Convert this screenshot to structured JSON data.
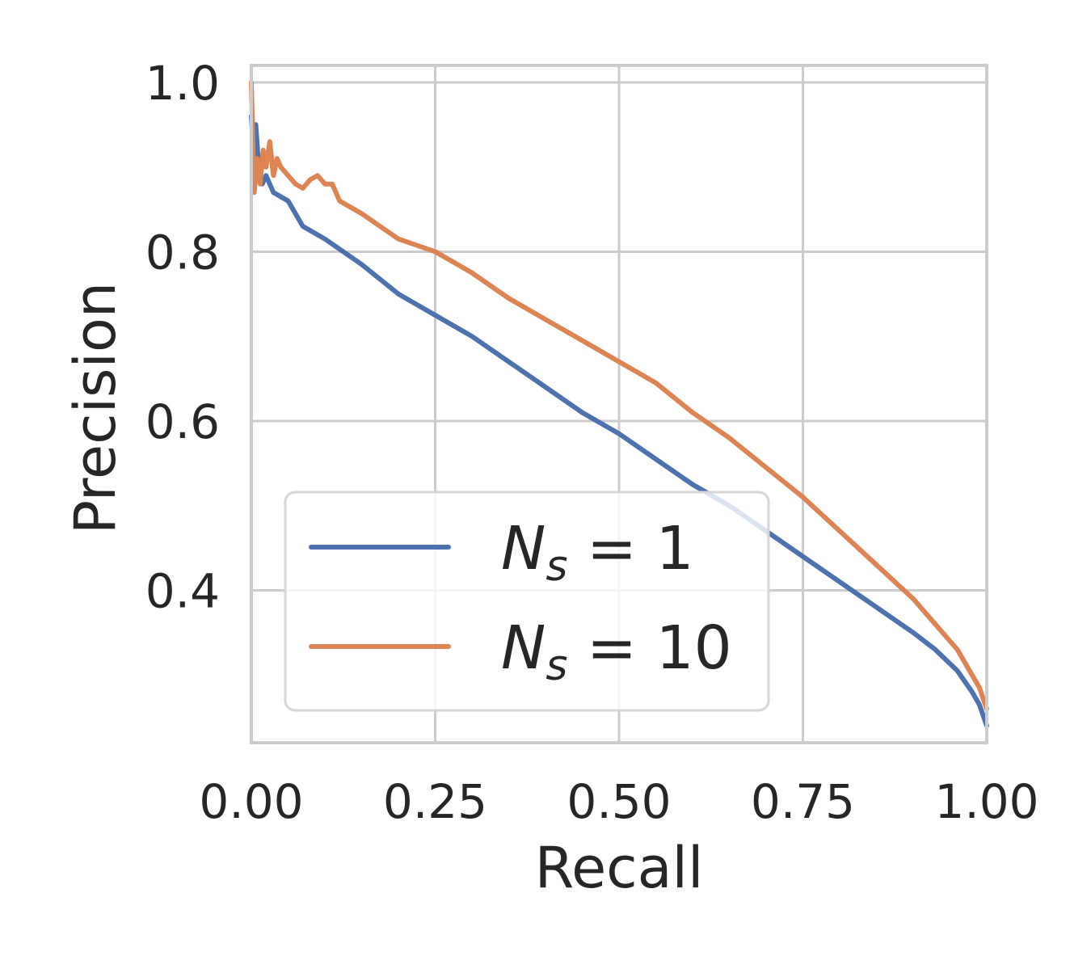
{
  "chart_data": {
    "type": "line",
    "title": "",
    "xlabel": "Recall",
    "ylabel": "Precision",
    "xlim": [
      0.0,
      1.0
    ],
    "ylim": [
      0.22,
      1.02
    ],
    "grid": true,
    "legend_position": "lower-left",
    "x_ticks": [
      0.0,
      0.25,
      0.5,
      0.75,
      1.0
    ],
    "x_tick_labels": [
      "0.00",
      "0.25",
      "0.50",
      "0.75",
      "1.00"
    ],
    "y_ticks": [
      0.4,
      0.6,
      0.8,
      1.0
    ],
    "y_tick_labels": [
      "0.4",
      "0.6",
      "0.8",
      "1.0"
    ],
    "series": [
      {
        "name": "N_s = 1",
        "label_main": "N",
        "label_sub": "s",
        "label_rest": " = 1",
        "color": "#4c72b0",
        "x": [
          0.0,
          0.003,
          0.006,
          0.01,
          0.015,
          0.02,
          0.03,
          0.05,
          0.07,
          0.1,
          0.15,
          0.2,
          0.25,
          0.3,
          0.35,
          0.4,
          0.45,
          0.5,
          0.55,
          0.6,
          0.65,
          0.7,
          0.75,
          0.8,
          0.85,
          0.9,
          0.93,
          0.96,
          0.98,
          0.99,
          1.0
        ],
        "y": [
          0.96,
          0.92,
          0.95,
          0.9,
          0.88,
          0.89,
          0.87,
          0.86,
          0.83,
          0.815,
          0.785,
          0.75,
          0.725,
          0.7,
          0.67,
          0.64,
          0.61,
          0.585,
          0.555,
          0.525,
          0.5,
          0.47,
          0.44,
          0.41,
          0.38,
          0.35,
          0.33,
          0.305,
          0.28,
          0.265,
          0.24
        ]
      },
      {
        "name": "N_s = 10",
        "label_main": "N",
        "label_sub": "s",
        "label_rest": " = 10",
        "color": "#dd8452",
        "x": [
          0.0,
          0.004,
          0.008,
          0.012,
          0.016,
          0.02,
          0.025,
          0.03,
          0.035,
          0.04,
          0.05,
          0.06,
          0.07,
          0.08,
          0.09,
          0.1,
          0.11,
          0.12,
          0.15,
          0.2,
          0.25,
          0.3,
          0.35,
          0.4,
          0.45,
          0.5,
          0.55,
          0.6,
          0.65,
          0.7,
          0.75,
          0.8,
          0.85,
          0.9,
          0.93,
          0.96,
          0.98,
          0.99,
          1.0
        ],
        "y": [
          1.0,
          0.87,
          0.91,
          0.88,
          0.92,
          0.9,
          0.93,
          0.89,
          0.91,
          0.9,
          0.89,
          0.88,
          0.875,
          0.885,
          0.89,
          0.88,
          0.88,
          0.86,
          0.845,
          0.815,
          0.8,
          0.775,
          0.745,
          0.72,
          0.695,
          0.67,
          0.645,
          0.61,
          0.58,
          0.545,
          0.51,
          0.47,
          0.43,
          0.39,
          0.36,
          0.33,
          0.3,
          0.285,
          0.26
        ]
      }
    ]
  }
}
